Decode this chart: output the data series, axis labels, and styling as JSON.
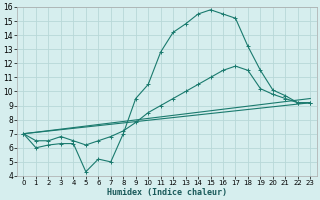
{
  "xlabel": "Humidex (Indice chaleur)",
  "bg_color": "#d6eeee",
  "line_color": "#1a7a6e",
  "grid_color": "#b8d8d8",
  "xlim": [
    -0.5,
    23.5
  ],
  "ylim": [
    4,
    16
  ],
  "xticks": [
    0,
    1,
    2,
    3,
    4,
    5,
    6,
    7,
    8,
    9,
    10,
    11,
    12,
    13,
    14,
    15,
    16,
    17,
    18,
    19,
    20,
    21,
    22,
    23
  ],
  "yticks": [
    4,
    5,
    6,
    7,
    8,
    9,
    10,
    11,
    12,
    13,
    14,
    15,
    16
  ],
  "series": [
    {
      "x": [
        0,
        1,
        2,
        3,
        4,
        5,
        6,
        7,
        8,
        9,
        10,
        11,
        12,
        13,
        14,
        15,
        16,
        17,
        18,
        19,
        20,
        21,
        22,
        23
      ],
      "y": [
        7.0,
        6.0,
        6.2,
        6.3,
        6.3,
        4.3,
        5.2,
        5.0,
        7.0,
        9.5,
        10.5,
        12.8,
        14.2,
        14.8,
        15.5,
        15.8,
        15.5,
        15.2,
        13.2,
        11.5,
        10.1,
        9.7,
        9.2,
        9.2
      ],
      "marker": true
    },
    {
      "x": [
        0,
        1,
        2,
        3,
        4,
        5,
        6,
        7,
        8,
        9,
        10,
        11,
        12,
        13,
        14,
        15,
        16,
        17,
        18,
        19,
        20,
        21,
        22,
        23
      ],
      "y": [
        7.0,
        6.5,
        6.5,
        6.8,
        6.5,
        6.2,
        6.5,
        6.8,
        7.2,
        7.8,
        8.5,
        9.0,
        9.5,
        10.0,
        10.5,
        11.0,
        11.5,
        11.8,
        11.5,
        10.2,
        9.8,
        9.5,
        9.2,
        9.2
      ],
      "marker": true
    },
    {
      "x": [
        0,
        23
      ],
      "y": [
        7.0,
        9.2
      ],
      "marker": false
    },
    {
      "x": [
        0,
        23
      ],
      "y": [
        7.0,
        9.5
      ],
      "marker": false
    }
  ]
}
